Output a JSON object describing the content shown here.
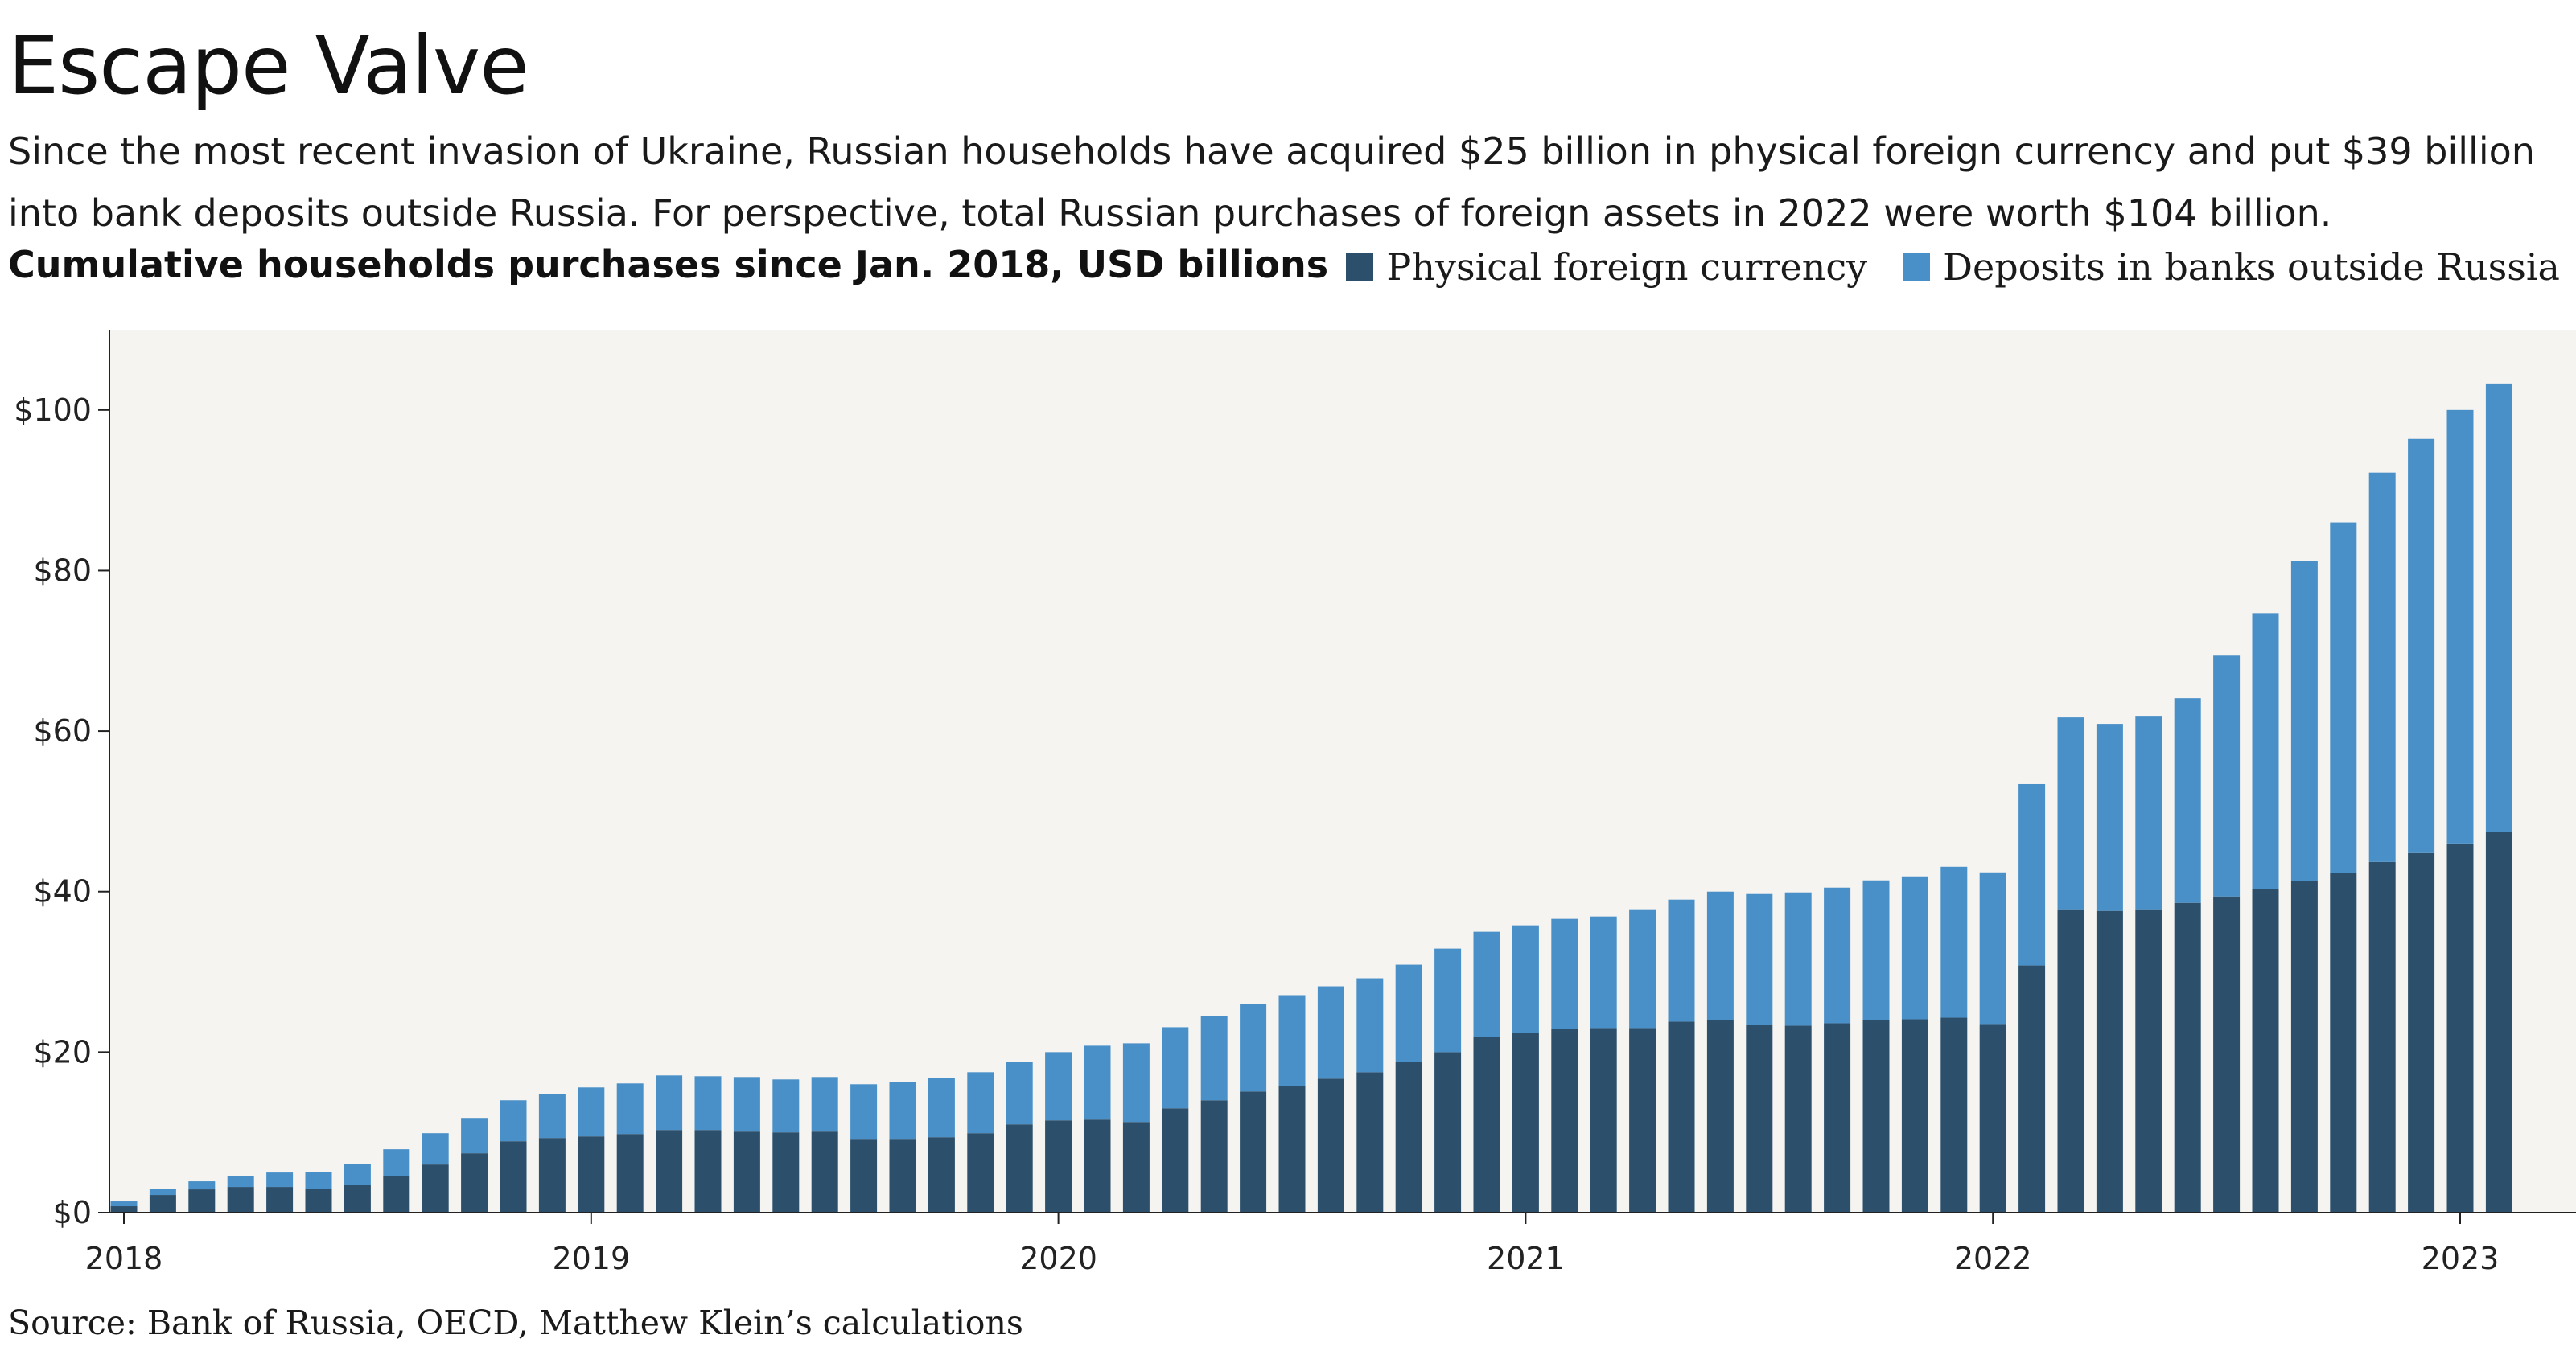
{
  "header": {
    "title": "Escape Valve",
    "subtitle": "Since the most recent invasion of Ukraine, Russian households have acquired $25 billion in physical foreign currency and put $39 billion into bank deposits outside Russia. For perspective, total Russian purchases of foreign assets in 2022 were worth $104 billion.",
    "chart_heading": "Cumulative households purchases since Jan. 2018, USD billions"
  },
  "footer": {
    "source": "Source: Bank of Russia, OECD, Matthew Klein’s calculations"
  },
  "colors": {
    "physical": "#2c4f6b",
    "deposits": "#4a90c8",
    "plot_background": "#f5f4f1"
  },
  "chart_data": {
    "type": "bar",
    "stacked": true,
    "title": "",
    "xlabel": "",
    "ylabel": "",
    "ylim": [
      0,
      110
    ],
    "y_ticks": [
      0,
      20,
      40,
      60,
      80,
      100
    ],
    "y_tick_labels": [
      "$0",
      "$20",
      "$40",
      "$60",
      "$80",
      "$100"
    ],
    "x_ticks": [
      "2018",
      "2019",
      "2020",
      "2021",
      "2022",
      "2023"
    ],
    "x_tick_periods": [
      "2018-01",
      "2019-01",
      "2020-01",
      "2021-01",
      "2022-01",
      "2023-01"
    ],
    "legend_position": "top-right",
    "grid": false,
    "categories": [
      "2018-01",
      "2018-02",
      "2018-03",
      "2018-04",
      "2018-05",
      "2018-06",
      "2018-07",
      "2018-08",
      "2018-09",
      "2018-10",
      "2018-11",
      "2018-12",
      "2019-01",
      "2019-02",
      "2019-03",
      "2019-04",
      "2019-05",
      "2019-06",
      "2019-07",
      "2019-08",
      "2019-09",
      "2019-10",
      "2019-11",
      "2019-12",
      "2020-01",
      "2020-02",
      "2020-03",
      "2020-04",
      "2020-05",
      "2020-06",
      "2020-07",
      "2020-08",
      "2020-09",
      "2020-10",
      "2020-11",
      "2020-12",
      "2021-01",
      "2021-02",
      "2021-03",
      "2021-04",
      "2021-05",
      "2021-06",
      "2021-07",
      "2021-08",
      "2021-09",
      "2021-10",
      "2021-11",
      "2021-12",
      "2022-01",
      "2022-02",
      "2022-03",
      "2022-04",
      "2022-05",
      "2022-06",
      "2022-07",
      "2022-08",
      "2022-09",
      "2022-10",
      "2022-11",
      "2022-12",
      "2023-01",
      "2023-02"
    ],
    "series": [
      {
        "name": "Physical foreign currency",
        "values": [
          0.8,
          2.2,
          2.9,
          3.2,
          3.2,
          3.0,
          3.5,
          4.6,
          6.0,
          7.4,
          8.9,
          9.3,
          9.5,
          9.8,
          10.3,
          10.3,
          10.1,
          10.0,
          10.1,
          9.2,
          9.2,
          9.4,
          9.9,
          11.0,
          11.5,
          11.6,
          11.3,
          13.0,
          14.0,
          15.1,
          15.8,
          16.7,
          17.5,
          18.8,
          20.0,
          21.9,
          22.4,
          22.9,
          23.0,
          23.0,
          23.8,
          24.0,
          23.4,
          23.3,
          23.6,
          24.0,
          24.1,
          24.3,
          23.5,
          30.8,
          37.8,
          37.6,
          37.8,
          38.6,
          39.4,
          40.3,
          41.3,
          42.3,
          43.7,
          44.8,
          46.0,
          47.4
        ]
      },
      {
        "name": "Deposits in banks outside Russia",
        "values": [
          0.6,
          0.8,
          1.0,
          1.4,
          1.8,
          2.1,
          2.6,
          3.3,
          3.9,
          4.4,
          5.1,
          5.5,
          6.1,
          6.3,
          6.8,
          6.7,
          6.8,
          6.6,
          6.8,
          6.8,
          7.1,
          7.4,
          7.6,
          7.8,
          8.5,
          9.2,
          9.8,
          10.1,
          10.5,
          10.9,
          11.3,
          11.5,
          11.7,
          12.1,
          12.9,
          13.1,
          13.4,
          13.7,
          13.9,
          14.8,
          15.2,
          16.0,
          16.3,
          16.6,
          16.9,
          17.4,
          17.8,
          18.8,
          18.9,
          22.6,
          23.9,
          23.3,
          24.1,
          25.5,
          30.0,
          34.4,
          39.9,
          43.7,
          48.5,
          51.6,
          54.0,
          55.9
        ]
      }
    ]
  }
}
